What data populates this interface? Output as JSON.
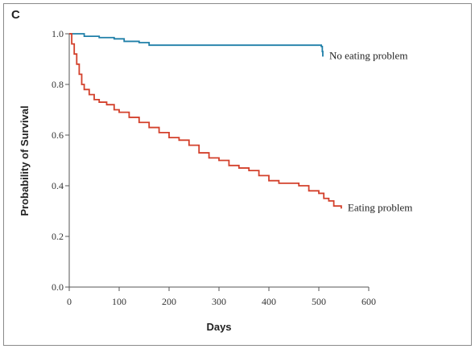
{
  "panel_label": "C",
  "chart_data": {
    "type": "line",
    "xlabel": "Days",
    "ylabel": "Probability of Survival",
    "xlim": [
      0,
      600
    ],
    "ylim": [
      0.0,
      1.0
    ],
    "x_ticks": [
      0,
      100,
      200,
      300,
      400,
      500,
      600
    ],
    "x_tick_labels": [
      "0",
      "100",
      "200",
      "300",
      "400",
      "500",
      "600"
    ],
    "y_ticks": [
      0.0,
      0.2,
      0.4,
      0.6,
      0.8,
      1.0
    ],
    "y_tick_labels": [
      "0.0",
      "0.2",
      "0.4",
      "0.6",
      "0.8",
      "1.0"
    ],
    "grid": false,
    "series": [
      {
        "name": "No eating problem",
        "color": "#1f7fa8",
        "step": true,
        "x": [
          0,
          30,
          60,
          90,
          110,
          140,
          160,
          205,
          300,
          400,
          505,
          507,
          508
        ],
        "y": [
          1.0,
          0.99,
          0.985,
          0.98,
          0.97,
          0.965,
          0.955,
          0.955,
          0.955,
          0.955,
          0.95,
          0.93,
          0.91
        ]
      },
      {
        "name": "Eating problem",
        "color": "#d3402b",
        "step": false,
        "x": [
          0,
          5,
          10,
          15,
          20,
          25,
          30,
          40,
          50,
          60,
          75,
          90,
          100,
          120,
          140,
          160,
          180,
          200,
          220,
          240,
          260,
          280,
          300,
          320,
          340,
          360,
          380,
          400,
          420,
          440,
          460,
          480,
          500,
          510,
          520,
          530,
          545
        ],
        "y": [
          1.0,
          0.96,
          0.92,
          0.88,
          0.84,
          0.8,
          0.78,
          0.76,
          0.74,
          0.73,
          0.72,
          0.7,
          0.69,
          0.67,
          0.65,
          0.63,
          0.61,
          0.59,
          0.58,
          0.56,
          0.53,
          0.51,
          0.5,
          0.48,
          0.47,
          0.46,
          0.44,
          0.42,
          0.41,
          0.41,
          0.4,
          0.38,
          0.37,
          0.35,
          0.34,
          0.32,
          0.31
        ]
      }
    ],
    "annotations": [
      {
        "text": "No eating problem",
        "series": "No eating problem"
      },
      {
        "text": "Eating problem",
        "series": "Eating problem"
      }
    ]
  }
}
